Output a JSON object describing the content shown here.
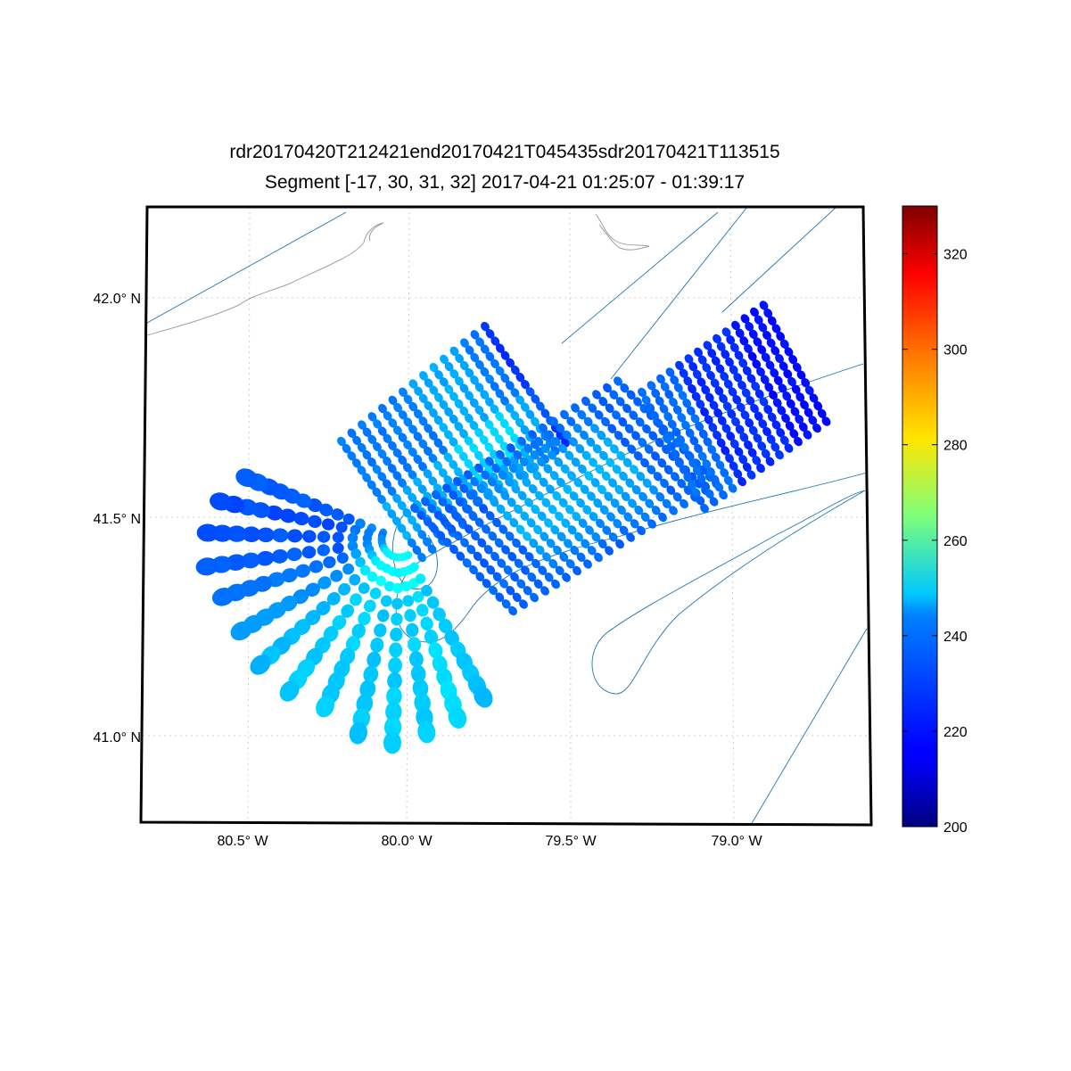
{
  "title_line1": "rdr20170420T212421end20170421T045435sdr20170421T113515",
  "title_line2": "Segment [-17, 30, 31, 32] 2017-04-21 01:25:07 - 01:39:17",
  "lat_labels": [
    "42.0° N",
    "41.5° N",
    "41.0° N"
  ],
  "lon_labels": [
    "80.5° W",
    "80.0° W",
    "79.5° W",
    "79.0° W"
  ],
  "colorbar": {
    "min": 200,
    "max": 330,
    "ticks": [
      "200",
      "220",
      "240",
      "260",
      "280",
      "300",
      "320"
    ],
    "colormap": "jet"
  },
  "map_extent": {
    "lon_min": -80.83,
    "lon_max": -78.57,
    "lat_min": 40.8,
    "lat_max": 42.2
  },
  "colors": {
    "track": "#1f77b4",
    "coast": "#a0a0a0",
    "frame": "#000000"
  }
}
